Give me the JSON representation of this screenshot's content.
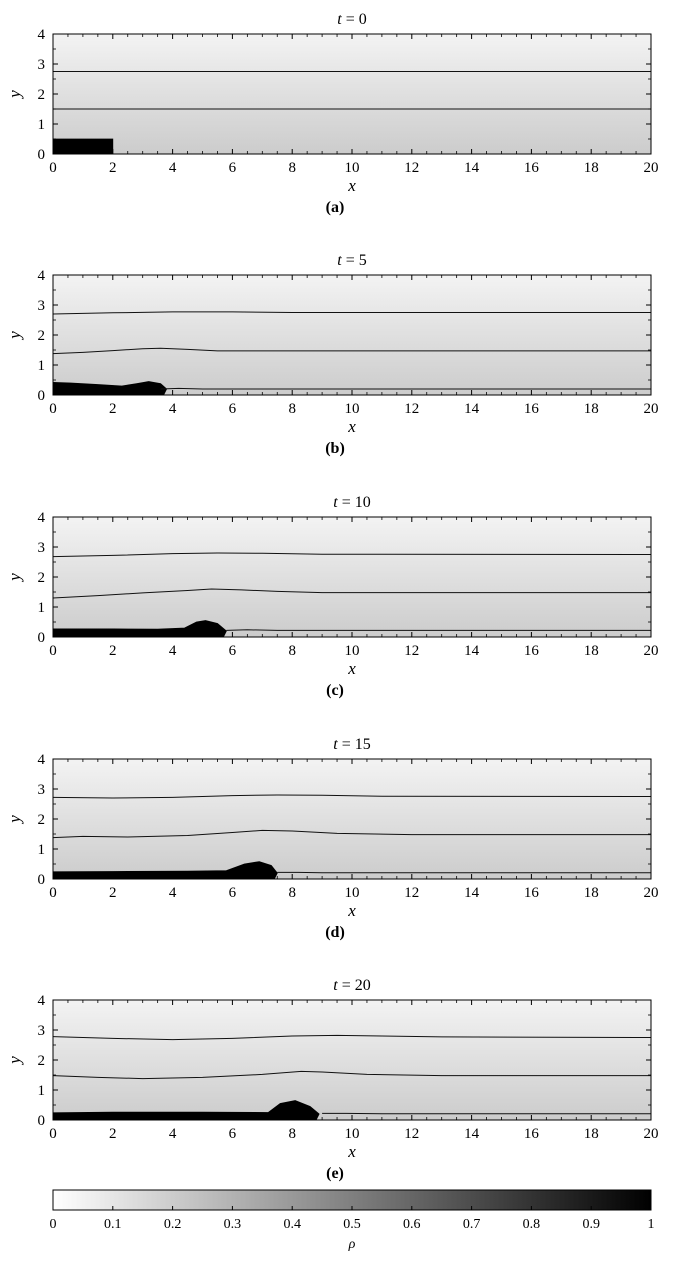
{
  "chart_data": [
    {
      "type": "heatmap",
      "panel_label": "(a)",
      "title": "t = 0",
      "xlabel": "x",
      "ylabel": "y",
      "xlim": [
        0,
        20
      ],
      "ylim": [
        0,
        4
      ],
      "xticks": [
        "0",
        "2",
        "4",
        "6",
        "8",
        "10",
        "12",
        "14",
        "16",
        "18",
        "20"
      ],
      "yticks": [
        "0",
        "1",
        "2",
        "3",
        "4"
      ],
      "contours": [
        {
          "points": [
            [
              0,
              2.75
            ],
            [
              20,
              2.75
            ]
          ]
        },
        {
          "points": [
            [
              0,
              1.5
            ],
            [
              20,
              1.5
            ]
          ]
        }
      ],
      "dense_region": [
        [
          0,
          0
        ],
        [
          0,
          0.5
        ],
        [
          2,
          0.5
        ],
        [
          2,
          0
        ]
      ]
    },
    {
      "type": "heatmap",
      "panel_label": "(b)",
      "title": "t = 5",
      "xlabel": "x",
      "ylabel": "y",
      "xlim": [
        0,
        20
      ],
      "ylim": [
        0,
        4
      ],
      "xticks": [
        "0",
        "2",
        "4",
        "6",
        "8",
        "10",
        "12",
        "14",
        "16",
        "18",
        "20"
      ],
      "yticks": [
        "0",
        "1",
        "2",
        "3",
        "4"
      ],
      "contours": [
        {
          "points": [
            [
              0,
              2.7
            ],
            [
              2,
              2.74
            ],
            [
              4,
              2.77
            ],
            [
              6,
              2.77
            ],
            [
              8,
              2.75
            ],
            [
              20,
              2.75
            ]
          ]
        },
        {
          "points": [
            [
              0,
              1.38
            ],
            [
              1,
              1.42
            ],
            [
              2,
              1.48
            ],
            [
              3,
              1.54
            ],
            [
              3.6,
              1.56
            ],
            [
              4.5,
              1.52
            ],
            [
              5.5,
              1.47
            ],
            [
              7,
              1.47
            ],
            [
              20,
              1.47
            ]
          ]
        },
        {
          "points": [
            [
              3.6,
              0.2
            ],
            [
              4.2,
              0.22
            ],
            [
              5,
              0.2
            ],
            [
              20,
              0.2
            ]
          ]
        }
      ],
      "dense_region": [
        [
          0,
          0
        ],
        [
          0,
          0.42
        ],
        [
          0.6,
          0.4
        ],
        [
          1.5,
          0.35
        ],
        [
          2.3,
          0.3
        ],
        [
          2.8,
          0.38
        ],
        [
          3.2,
          0.45
        ],
        [
          3.6,
          0.38
        ],
        [
          3.8,
          0.2
        ],
        [
          3.7,
          0
        ]
      ],
      "front_x": 3.7
    },
    {
      "type": "heatmap",
      "panel_label": "(c)",
      "title": "t = 10",
      "xlabel": "x",
      "ylabel": "y",
      "xlim": [
        0,
        20
      ],
      "ylim": [
        0,
        4
      ],
      "xticks": [
        "0",
        "2",
        "4",
        "6",
        "8",
        "10",
        "12",
        "14",
        "16",
        "18",
        "20"
      ],
      "yticks": [
        "0",
        "1",
        "2",
        "3",
        "4"
      ],
      "contours": [
        {
          "points": [
            [
              0,
              2.68
            ],
            [
              2,
              2.72
            ],
            [
              4,
              2.78
            ],
            [
              5.5,
              2.8
            ],
            [
              7,
              2.79
            ],
            [
              9,
              2.76
            ],
            [
              20,
              2.75
            ]
          ]
        },
        {
          "points": [
            [
              0,
              1.3
            ],
            [
              1.5,
              1.38
            ],
            [
              3,
              1.47
            ],
            [
              4.5,
              1.55
            ],
            [
              5.3,
              1.6
            ],
            [
              6.3,
              1.57
            ],
            [
              7.5,
              1.52
            ],
            [
              9,
              1.48
            ],
            [
              20,
              1.48
            ]
          ]
        },
        {
          "points": [
            [
              5.8,
              0.22
            ],
            [
              6.5,
              0.24
            ],
            [
              7.5,
              0.22
            ],
            [
              20,
              0.22
            ]
          ]
        }
      ],
      "dense_region": [
        [
          0,
          0
        ],
        [
          0,
          0.27
        ],
        [
          2,
          0.27
        ],
        [
          3.5,
          0.26
        ],
        [
          4.4,
          0.3
        ],
        [
          4.8,
          0.5
        ],
        [
          5.1,
          0.55
        ],
        [
          5.5,
          0.45
        ],
        [
          5.8,
          0.2
        ],
        [
          5.7,
          0
        ]
      ],
      "front_x": 5.7
    },
    {
      "type": "heatmap",
      "panel_label": "(d)",
      "title": "t = 15",
      "xlabel": "x",
      "ylabel": "y",
      "xlim": [
        0,
        20
      ],
      "ylim": [
        0,
        4
      ],
      "xticks": [
        "0",
        "2",
        "4",
        "6",
        "8",
        "10",
        "12",
        "14",
        "16",
        "18",
        "20"
      ],
      "yticks": [
        "0",
        "1",
        "2",
        "3",
        "4"
      ],
      "contours": [
        {
          "points": [
            [
              0,
              2.72
            ],
            [
              2,
              2.7
            ],
            [
              4,
              2.72
            ],
            [
              6,
              2.78
            ],
            [
              7.5,
              2.8
            ],
            [
              9,
              2.79
            ],
            [
              11,
              2.76
            ],
            [
              20,
              2.75
            ]
          ]
        },
        {
          "points": [
            [
              0,
              1.38
            ],
            [
              1,
              1.42
            ],
            [
              2.5,
              1.4
            ],
            [
              4.5,
              1.45
            ],
            [
              6,
              1.55
            ],
            [
              7,
              1.62
            ],
            [
              8,
              1.6
            ],
            [
              9.5,
              1.52
            ],
            [
              12,
              1.48
            ],
            [
              20,
              1.48
            ]
          ]
        },
        {
          "points": [
            [
              7.5,
              0.22
            ],
            [
              8.2,
              0.22
            ],
            [
              9,
              0.21
            ],
            [
              20,
              0.21
            ]
          ]
        }
      ],
      "dense_region": [
        [
          0,
          0
        ],
        [
          0,
          0.24
        ],
        [
          2,
          0.25
        ],
        [
          4.5,
          0.26
        ],
        [
          5.8,
          0.28
        ],
        [
          6.4,
          0.5
        ],
        [
          6.9,
          0.58
        ],
        [
          7.3,
          0.45
        ],
        [
          7.5,
          0.2
        ],
        [
          7.4,
          0
        ]
      ],
      "front_x": 7.4
    },
    {
      "type": "heatmap",
      "panel_label": "(e)",
      "title": "t = 20",
      "xlabel": "x",
      "ylabel": "y",
      "xlim": [
        0,
        20
      ],
      "ylim": [
        0,
        4
      ],
      "xticks": [
        "0",
        "2",
        "4",
        "6",
        "8",
        "10",
        "12",
        "14",
        "16",
        "18",
        "20"
      ],
      "yticks": [
        "0",
        "1",
        "2",
        "3",
        "4"
      ],
      "contours": [
        {
          "points": [
            [
              0,
              2.78
            ],
            [
              2,
              2.72
            ],
            [
              4,
              2.68
            ],
            [
              6,
              2.72
            ],
            [
              8,
              2.8
            ],
            [
              9.5,
              2.82
            ],
            [
              11,
              2.8
            ],
            [
              13,
              2.77
            ],
            [
              20,
              2.75
            ]
          ]
        },
        {
          "points": [
            [
              0,
              1.48
            ],
            [
              1.5,
              1.42
            ],
            [
              3,
              1.38
            ],
            [
              5,
              1.42
            ],
            [
              7,
              1.52
            ],
            [
              8.3,
              1.62
            ],
            [
              9,
              1.6
            ],
            [
              10.5,
              1.52
            ],
            [
              13,
              1.48
            ],
            [
              20,
              1.48
            ]
          ]
        },
        {
          "points": [
            [
              9,
              0.22
            ],
            [
              9.8,
              0.22
            ],
            [
              11,
              0.21
            ],
            [
              20,
              0.21
            ]
          ]
        }
      ],
      "dense_region": [
        [
          0,
          0
        ],
        [
          0,
          0.24
        ],
        [
          2,
          0.26
        ],
        [
          5,
          0.26
        ],
        [
          7.2,
          0.25
        ],
        [
          7.6,
          0.55
        ],
        [
          8.1,
          0.65
        ],
        [
          8.6,
          0.45
        ],
        [
          8.9,
          0.2
        ],
        [
          8.8,
          0
        ]
      ],
      "front_x": 8.8
    }
  ],
  "colorbar": {
    "label": "ρ",
    "range": [
      0,
      1
    ],
    "ticks": [
      "0",
      "0.1",
      "0.2",
      "0.3",
      "0.4",
      "0.5",
      "0.6",
      "0.7",
      "0.8",
      "0.9",
      "1"
    ],
    "colors": [
      "#ffffff",
      "#000000"
    ]
  }
}
